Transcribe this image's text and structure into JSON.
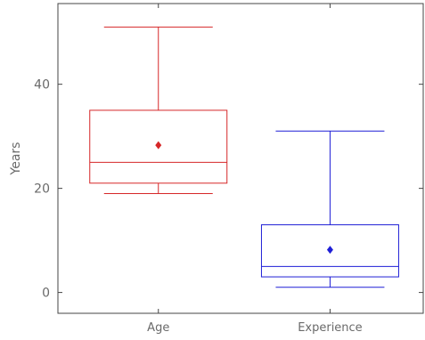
{
  "chart_data": {
    "type": "box",
    "ylabel": "Years",
    "ylim": [
      -4,
      55.5
    ],
    "y_ticks": [
      0,
      20,
      40
    ],
    "y_tick_labels": [
      "0",
      "20",
      "40"
    ],
    "categories": [
      "Age",
      "Experience"
    ],
    "grid": false,
    "series": [
      {
        "category": "Age",
        "color": "#d62728",
        "whisker_low": 19,
        "q1": 21,
        "median": 25,
        "q3": 35,
        "whisker_high": 51,
        "mean": 28.3
      },
      {
        "category": "Experience",
        "color": "#1f1fd6",
        "whisker_low": 1,
        "q1": 3,
        "median": 5,
        "q3": 13,
        "whisker_high": 31,
        "mean": 8.2
      }
    ]
  }
}
